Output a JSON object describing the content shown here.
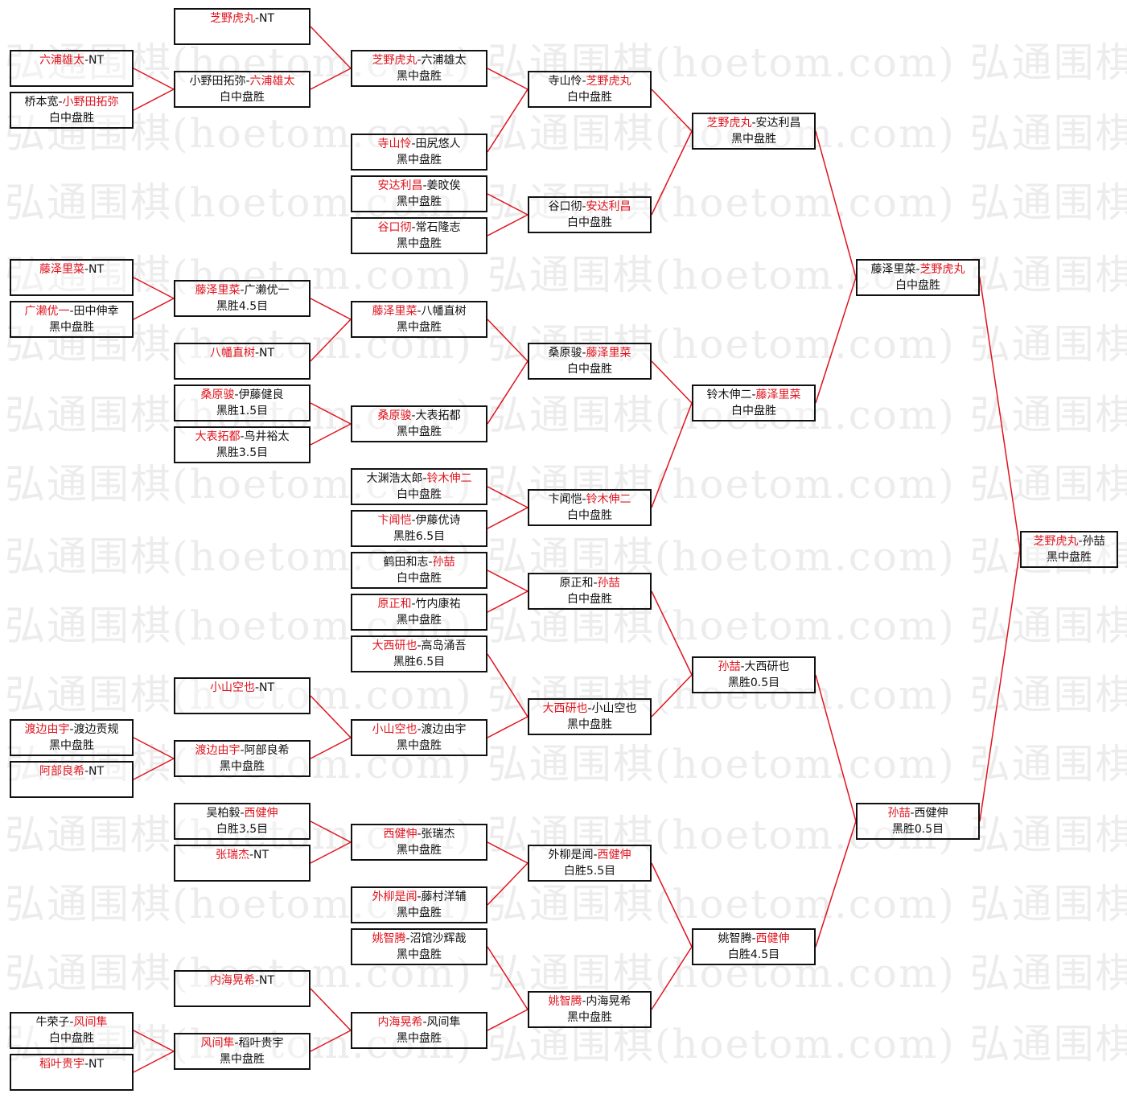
{
  "watermark": "弘通围棋(hoetom.com)",
  "colors": {
    "winner": "#e0141e",
    "connector": "#e0141e",
    "text": "#111111",
    "border": "#111111"
  },
  "bye_label": "NT",
  "matches": [
    {
      "p1": "六浦雄太",
      "p2": "NT",
      "winner": 1,
      "result": ""
    },
    {
      "p1": "桥本宽",
      "p2": "小野田拓弥",
      "winner": 2,
      "result": "白中盘胜"
    },
    {
      "p1": "藤泽里菜",
      "p2": "NT",
      "winner": 1,
      "result": ""
    },
    {
      "p1": "广濑优一",
      "p2": "田中伸幸",
      "winner": 1,
      "result": "黑中盘胜"
    },
    {
      "p1": "渡边由宇",
      "p2": "渡边贡规",
      "winner": 1,
      "result": "黑中盘胜"
    },
    {
      "p1": "阿部良希",
      "p2": "NT",
      "winner": 1,
      "result": ""
    },
    {
      "p1": "牛荣子",
      "p2": "风间隼",
      "winner": 2,
      "result": "白中盘胜"
    },
    {
      "p1": "稻叶贵宇",
      "p2": "NT",
      "winner": 1,
      "result": ""
    },
    {
      "p1": "芝野虎丸",
      "p2": "NT",
      "winner": 1,
      "result": ""
    },
    {
      "p1": "小野田拓弥",
      "p2": "六浦雄太",
      "winner": 2,
      "result": "白中盘胜"
    },
    {
      "p1": "藤泽里菜",
      "p2": "广濑优一",
      "winner": 1,
      "result": "黑胜4.5目"
    },
    {
      "p1": "八幡直树",
      "p2": "NT",
      "winner": 1,
      "result": ""
    },
    {
      "p1": "桑原骏",
      "p2": "伊藤健良",
      "winner": 1,
      "result": "黑胜1.5目"
    },
    {
      "p1": "大表拓都",
      "p2": "鸟井裕太",
      "winner": 1,
      "result": "黑胜3.5目"
    },
    {
      "p1": "小山空也",
      "p2": "NT",
      "winner": 1,
      "result": ""
    },
    {
      "p1": "渡边由宇",
      "p2": "阿部良希",
      "winner": 1,
      "result": "黑中盘胜"
    },
    {
      "p1": "吴柏毅",
      "p2": "西健伸",
      "winner": 2,
      "result": "白胜3.5目"
    },
    {
      "p1": "张瑞杰",
      "p2": "NT",
      "winner": 1,
      "result": ""
    },
    {
      "p1": "内海晃希",
      "p2": "NT",
      "winner": 1,
      "result": ""
    },
    {
      "p1": "风间隼",
      "p2": "稻叶贵宇",
      "winner": 1,
      "result": "黑中盘胜"
    },
    {
      "p1": "芝野虎丸",
      "p2": "六浦雄太",
      "winner": 1,
      "result": "黑中盘胜"
    },
    {
      "p1": "寺山怜",
      "p2": "田尻悠人",
      "winner": 1,
      "result": "黑中盘胜"
    },
    {
      "p1": "安达利昌",
      "p2": "姜旼俟",
      "winner": 1,
      "result": "黑中盘胜"
    },
    {
      "p1": "谷口彻",
      "p2": "常石隆志",
      "winner": 1,
      "result": "黑中盘胜"
    },
    {
      "p1": "藤泽里菜",
      "p2": "八幡直树",
      "winner": 1,
      "result": "黑中盘胜"
    },
    {
      "p1": "桑原骏",
      "p2": "大表拓都",
      "winner": 1,
      "result": "黑中盘胜"
    },
    {
      "p1": "大渊浩太郎",
      "p2": "铃木伸二",
      "winner": 2,
      "result": "白中盘胜"
    },
    {
      "p1": "卞闻恺",
      "p2": "伊藤优诗",
      "winner": 1,
      "result": "黑胜6.5目"
    },
    {
      "p1": "鹤田和志",
      "p2": "孙喆",
      "winner": 2,
      "result": "白中盘胜"
    },
    {
      "p1": "原正和",
      "p2": "竹内康祐",
      "winner": 1,
      "result": "黑中盘胜"
    },
    {
      "p1": "大西研也",
      "p2": "高岛涌吾",
      "winner": 1,
      "result": "黑胜6.5目"
    },
    {
      "p1": "小山空也",
      "p2": "渡边由宇",
      "winner": 1,
      "result": "黑中盘胜"
    },
    {
      "p1": "西健伸",
      "p2": "张瑞杰",
      "winner": 1,
      "result": "黑中盘胜"
    },
    {
      "p1": "外柳是闻",
      "p2": "藤村洋辅",
      "winner": 1,
      "result": "黑中盘胜"
    },
    {
      "p1": "姚智腾",
      "p2": "沼馆沙辉哉",
      "winner": 1,
      "result": "黑中盘胜"
    },
    {
      "p1": "内海晃希",
      "p2": "风间隼",
      "winner": 1,
      "result": "黑中盘胜"
    },
    {
      "p1": "寺山怜",
      "p2": "芝野虎丸",
      "winner": 2,
      "result": "白中盘胜"
    },
    {
      "p1": "谷口彻",
      "p2": "安达利昌",
      "winner": 2,
      "result": "白中盘胜"
    },
    {
      "p1": "桑原骏",
      "p2": "藤泽里菜",
      "winner": 2,
      "result": "白中盘胜"
    },
    {
      "p1": "卞闻恺",
      "p2": "铃木伸二",
      "winner": 2,
      "result": "白中盘胜"
    },
    {
      "p1": "原正和",
      "p2": "孙喆",
      "winner": 2,
      "result": "白中盘胜"
    },
    {
      "p1": "大西研也",
      "p2": "小山空也",
      "winner": 1,
      "result": "黑中盘胜"
    },
    {
      "p1": "外柳是闻",
      "p2": "西健伸",
      "winner": 2,
      "result": "白胜5.5目"
    },
    {
      "p1": "姚智腾",
      "p2": "内海晃希",
      "winner": 1,
      "result": "黑中盘胜"
    },
    {
      "p1": "芝野虎丸",
      "p2": "安达利昌",
      "winner": 1,
      "result": "黑中盘胜"
    },
    {
      "p1": "铃木伸二",
      "p2": "藤泽里菜",
      "winner": 2,
      "result": "白中盘胜"
    },
    {
      "p1": "孙喆",
      "p2": "大西研也",
      "winner": 1,
      "result": "黑胜0.5目"
    },
    {
      "p1": "姚智腾",
      "p2": "西健伸",
      "winner": 2,
      "result": "白胜4.5目"
    },
    {
      "p1": "藤泽里菜",
      "p2": "芝野虎丸",
      "winner": 2,
      "result": "白中盘胜"
    },
    {
      "p1": "孙喆",
      "p2": "西健伸",
      "winner": 1,
      "result": "黑胜0.5目"
    },
    {
      "p1": "芝野虎丸",
      "p2": "孙喆",
      "winner": 1,
      "result": "黑中盘胜"
    }
  ]
}
